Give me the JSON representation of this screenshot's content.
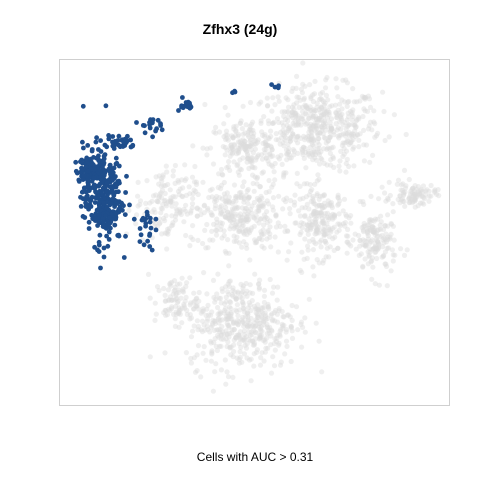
{
  "chart_data": {
    "type": "scatter",
    "title": "Zfhx3 (24g)",
    "xlabel": "Cells with AUC > 0.31",
    "ylabel": "",
    "grid": false,
    "legend": "none",
    "xlim": [
      0,
      100
    ],
    "ylim": [
      0,
      100
    ],
    "colors": {
      "background_cells": "#dcdcdc",
      "highlight_cells": "#1f4e8c"
    },
    "background_clusters": [
      {
        "name": "upper-right",
        "cx": 66,
        "cy": 80,
        "rx": 15,
        "ry": 11,
        "n": 520
      },
      {
        "name": "upper-middle",
        "cx": 47,
        "cy": 74,
        "rx": 8,
        "ry": 8,
        "n": 170
      },
      {
        "name": "central",
        "cx": 46,
        "cy": 55,
        "rx": 10,
        "ry": 9,
        "n": 280
      },
      {
        "name": "right-center",
        "cx": 67,
        "cy": 53,
        "rx": 7,
        "ry": 9,
        "n": 220
      },
      {
        "name": "right-lower",
        "cx": 81,
        "cy": 47,
        "rx": 5,
        "ry": 9,
        "n": 150
      },
      {
        "name": "far-right",
        "cx": 91,
        "cy": 61,
        "rx": 5,
        "ry": 3,
        "n": 90
      },
      {
        "name": "left-middle",
        "cx": 27,
        "cy": 58,
        "rx": 7,
        "ry": 10,
        "n": 140
      },
      {
        "name": "lower",
        "cx": 47,
        "cy": 24,
        "rx": 13,
        "ry": 12,
        "n": 450
      },
      {
        "name": "lower-left",
        "cx": 30,
        "cy": 30,
        "rx": 5,
        "ry": 6,
        "n": 80
      }
    ],
    "highlight_clusters": [
      {
        "name": "main",
        "cx": 11,
        "cy": 61,
        "rx": 4.5,
        "ry": 13,
        "n": 330
      },
      {
        "name": "upper-left",
        "cx": 8,
        "cy": 68,
        "rx": 3.5,
        "ry": 3,
        "n": 80
      },
      {
        "name": "arc-1",
        "cx": 16,
        "cy": 76,
        "rx": 3,
        "ry": 2.5,
        "n": 25
      },
      {
        "name": "arc-2",
        "cx": 23,
        "cy": 81,
        "rx": 2.5,
        "ry": 2,
        "n": 18
      },
      {
        "name": "arc-3",
        "cx": 32,
        "cy": 87,
        "rx": 2,
        "ry": 1.5,
        "n": 14
      },
      {
        "name": "top-1",
        "cx": 45,
        "cy": 91,
        "rx": 0.8,
        "ry": 0.8,
        "n": 3
      },
      {
        "name": "top-2",
        "cx": 56,
        "cy": 92,
        "rx": 1,
        "ry": 1.5,
        "n": 4
      },
      {
        "name": "mid-1",
        "cx": 22,
        "cy": 51,
        "rx": 2,
        "ry": 6,
        "n": 22
      }
    ]
  }
}
